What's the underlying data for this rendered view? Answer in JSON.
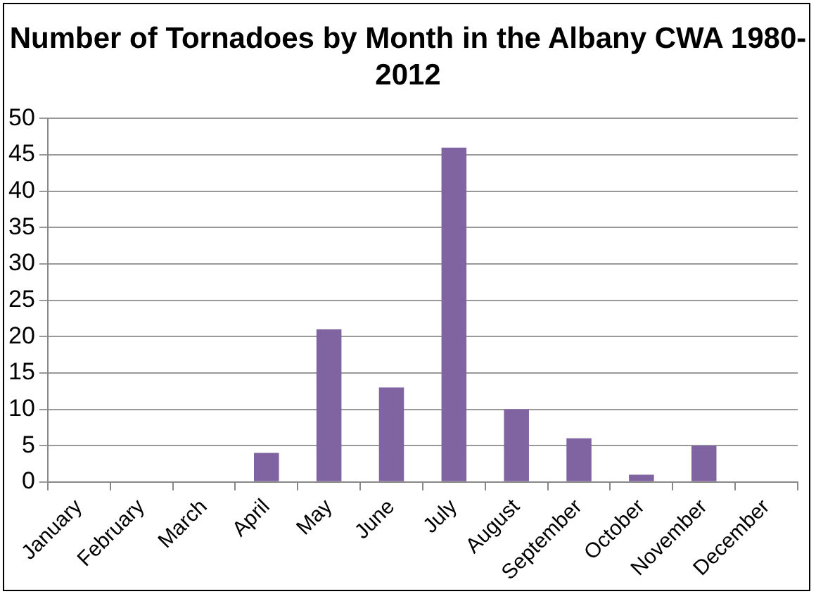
{
  "chart_data": {
    "type": "bar",
    "title": "Number of Tornadoes by Month in the Albany CWA 1980-2012",
    "categories": [
      "January",
      "February",
      "March",
      "April",
      "May",
      "June",
      "July",
      "August",
      "September",
      "October",
      "November",
      "December"
    ],
    "values": [
      0,
      0,
      0,
      4,
      21,
      13,
      46,
      10,
      6,
      1,
      5,
      0
    ],
    "color": "#8064a2",
    "ylim": [
      0,
      50
    ],
    "yticks": [
      0,
      5,
      10,
      15,
      20,
      25,
      30,
      35,
      40,
      45,
      50
    ],
    "grid": "y"
  }
}
